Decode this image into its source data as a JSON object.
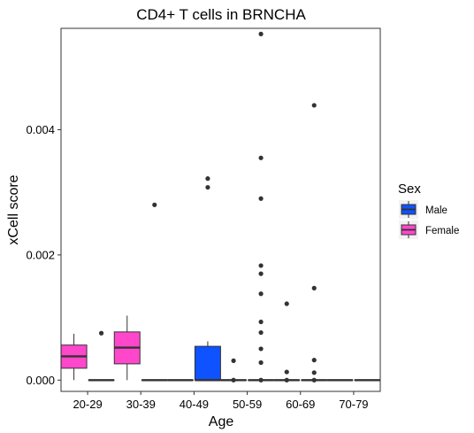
{
  "chart_data": {
    "type": "boxplot",
    "title": "CD4+ T cells in BRNCHA",
    "xlabel": "Age",
    "ylabel": "xCell score",
    "categories": [
      "20-29",
      "30-39",
      "40-49",
      "50-59",
      "60-69",
      "70-79"
    ],
    "ylim": [
      -0.00018,
      0.00562
    ],
    "yticks": [
      0.0,
      0.002,
      0.004
    ],
    "ytick_labels": [
      "0.000",
      "0.002",
      "0.004"
    ],
    "grid": false,
    "legend": {
      "title": "Sex",
      "position": "right",
      "entries": [
        {
          "label": "Male",
          "color": "#0f52ff"
        },
        {
          "label": "Female",
          "color": "#ff47cc"
        }
      ]
    },
    "series": [
      {
        "name": "Male",
        "color": "#0f52ff",
        "boxes": [
          {
            "category": "20-29",
            "min": 0,
            "q1": 0,
            "median": 0,
            "q3": 0,
            "max": 0,
            "outliers": [
              0.00075
            ]
          },
          {
            "category": "30-39",
            "min": 0,
            "q1": 0,
            "median": 0,
            "q3": 0,
            "max": 0,
            "outliers": [
              0.0028
            ]
          },
          {
            "category": "40-49",
            "min": 0,
            "q1": 0,
            "median": 0,
            "q3": 0.00054,
            "max": 0.00062,
            "outliers": [
              0.00322,
              0.00308
            ]
          },
          {
            "category": "50-59",
            "min": 0,
            "q1": 0,
            "median": 0,
            "q3": 0,
            "max": 0,
            "outliers": [
              0.00553,
              0.00355,
              0.0029,
              0.00183,
              0.0017,
              0.00138,
              0.00093,
              0.00076,
              0.0005,
              0.00028,
              0.0
            ]
          },
          {
            "category": "60-69",
            "min": 0,
            "q1": 0,
            "median": 0,
            "q3": 0,
            "max": 0,
            "outliers": [
              0.00439,
              0.00147,
              0.00032,
              0.00012,
              0.0
            ]
          },
          {
            "category": "70-79",
            "min": 0,
            "q1": 0,
            "median": 0,
            "q3": 0,
            "max": 0,
            "outliers": []
          }
        ]
      },
      {
        "name": "Female",
        "color": "#ff47cc",
        "boxes": [
          {
            "category": "20-29",
            "min": 0,
            "q1": 0.00019,
            "median": 0.00038,
            "q3": 0.00056,
            "max": 0.00074,
            "outliers": []
          },
          {
            "category": "30-39",
            "min": 0,
            "q1": 0.00026,
            "median": 0.00052,
            "q3": 0.00077,
            "max": 0.00103,
            "outliers": []
          },
          {
            "category": "40-49",
            "min": 0,
            "q1": 0,
            "median": 0,
            "q3": 0,
            "max": 0,
            "outliers": []
          },
          {
            "category": "50-59",
            "min": 0,
            "q1": 0,
            "median": 0,
            "q3": 0,
            "max": 0,
            "outliers": [
              0.00031,
              0.0
            ]
          },
          {
            "category": "60-69",
            "min": 0,
            "q1": 0,
            "median": 0,
            "q3": 0,
            "max": 0,
            "outliers": [
              0.00122,
              0.00013,
              0.0
            ]
          },
          {
            "category": "70-79",
            "min": 0,
            "q1": 0,
            "median": 0,
            "q3": 0,
            "max": 0,
            "outliers": []
          }
        ]
      }
    ]
  }
}
